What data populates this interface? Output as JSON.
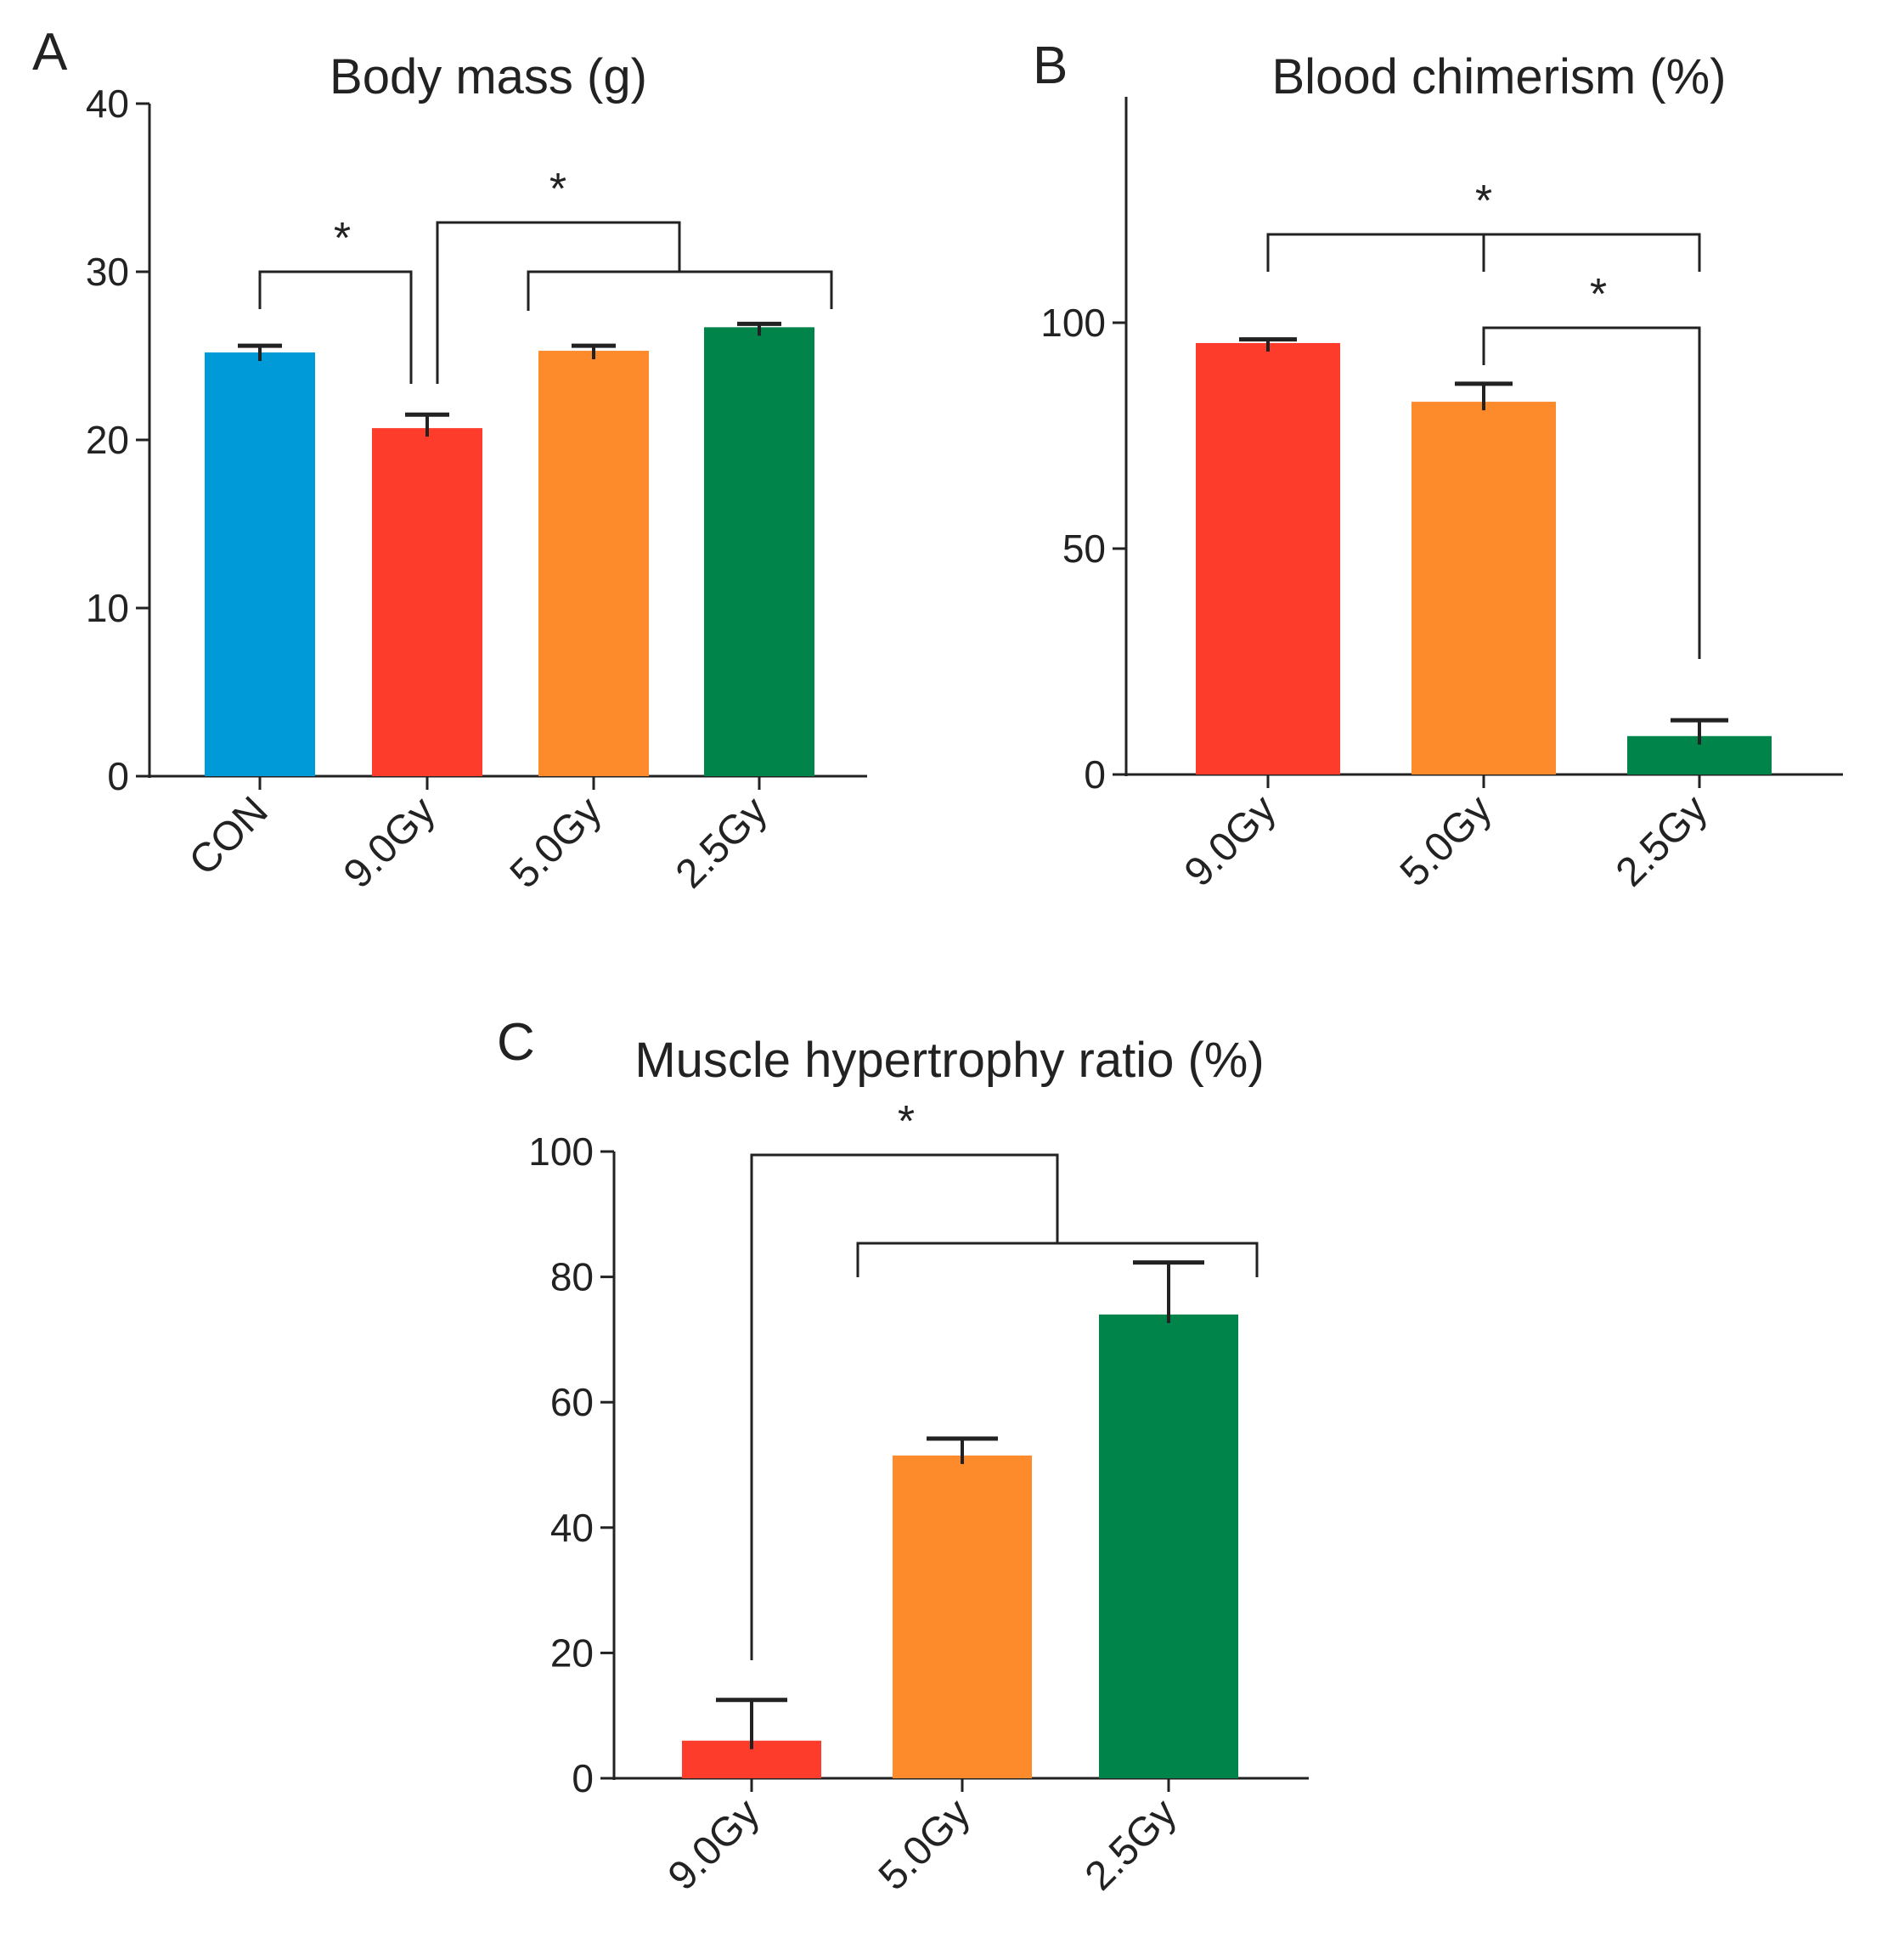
{
  "colors": {
    "CON": "#009ad8",
    "9.0Gy": "#fe3c2c",
    "5.0Gy": "#fd8a2b",
    "2.5Gy": "#00844a",
    "ink": "#222222"
  },
  "chart_data": [
    {
      "panel": "A",
      "type": "bar",
      "title": "Body mass (g)",
      "categories": [
        "CON",
        "9.0Gy",
        "5.0Gy",
        "2.5Gy"
      ],
      "values": [
        25.2,
        20.7,
        25.3,
        26.7
      ],
      "errors": [
        0.4,
        0.8,
        0.3,
        0.2
      ],
      "ylim": [
        0,
        40
      ],
      "yticks": [
        0,
        10,
        20,
        30,
        40
      ],
      "xlabel": "",
      "ylabel": "",
      "significance": [
        {
          "from": [
            "CON"
          ],
          "to": [
            "9.0Gy"
          ],
          "label": "*"
        },
        {
          "from": [
            "9.0Gy"
          ],
          "to": [
            "5.0Gy",
            "2.5Gy"
          ],
          "label": "*"
        }
      ]
    },
    {
      "panel": "B",
      "type": "bar",
      "title": "Blood chimerism (%)",
      "categories": [
        "9.0Gy",
        "5.0Gy",
        "2.5Gy"
      ],
      "values": [
        95.5,
        82.5,
        8.5
      ],
      "errors": [
        0.8,
        4.0,
        3.5
      ],
      "ylim": [
        0,
        150
      ],
      "yticks": [
        0,
        50,
        100
      ],
      "xlabel": "",
      "ylabel": "",
      "significance": [
        {
          "from": [
            "9.0Gy"
          ],
          "to": [
            "2.5Gy"
          ],
          "label": "*"
        },
        {
          "from": [
            "5.0Gy"
          ],
          "to": [
            "2.5Gy"
          ],
          "label": "*"
        }
      ]
    },
    {
      "panel": "C",
      "type": "bar",
      "title": "Muscle hypertrophy ratio (%)",
      "categories": [
        "9.0Gy",
        "5.0Gy",
        "2.5Gy"
      ],
      "values": [
        6,
        51.5,
        74
      ],
      "errors": [
        6.5,
        2.7,
        8.3
      ],
      "ylim": [
        0,
        100
      ],
      "yticks": [
        0,
        20,
        40,
        60,
        80,
        100
      ],
      "xlabel": "",
      "ylabel": "",
      "significance": [
        {
          "from": [
            "9.0Gy"
          ],
          "to": [
            "5.0Gy",
            "2.5Gy"
          ],
          "label": "*"
        }
      ]
    }
  ]
}
